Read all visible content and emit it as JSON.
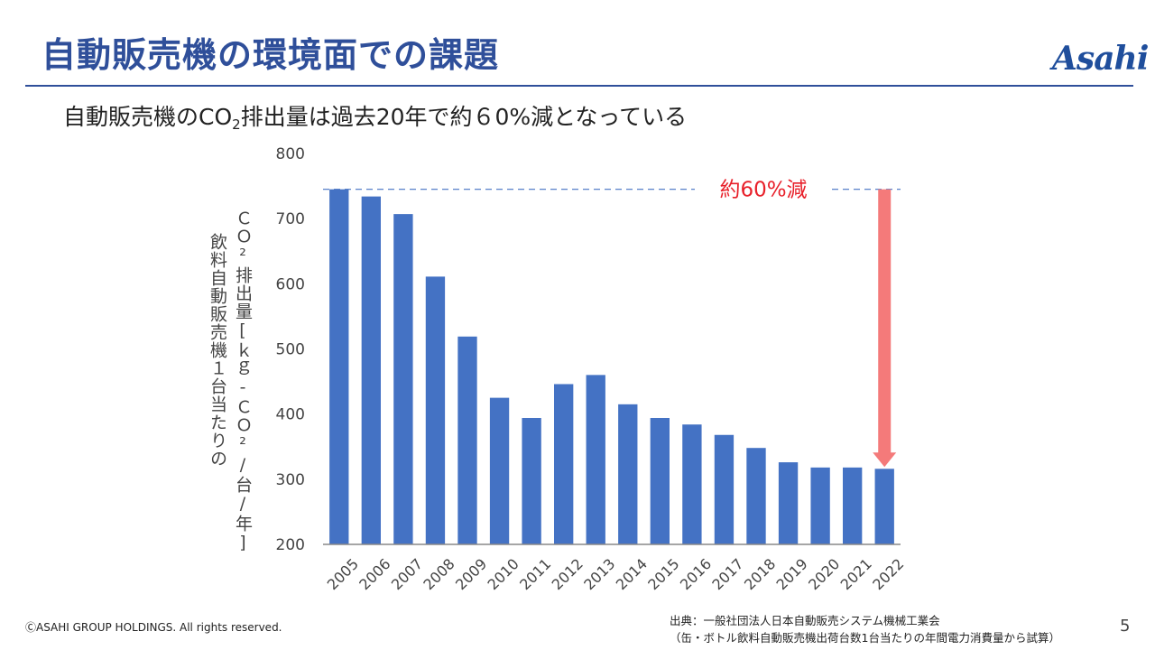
{
  "slide": {
    "title": "自動販売機の環境面での課題",
    "logo_text": "Asahi",
    "subtitle_prefix": "自動販売機のCO",
    "subtitle_sub": "2",
    "subtitle_suffix": "排出量は過去20年で約６0%減となっている",
    "ylabel_line1": "ＣＯ²排出量[ｋｇ-ＣＯ²/台/年]",
    "ylabel_line2": "飲料自動販売機１台当たりの",
    "copyright": "ⒸASAHI GROUP HOLDINGS. All rights reserved.",
    "source_line1": "出典：一般社団法人日本自動販売システム機械工業会",
    "source_line2": "（缶・ボトル飲料自動販売機出荷台数1台当たりの年間電力消費量から試算）",
    "page_number": "5",
    "colors": {
      "title": "#2f4f9a",
      "bar": "#4472c4",
      "arrow": "#f47a7a",
      "annotation": "#e8202a",
      "reference_line": "#4472c4"
    }
  },
  "chart_data": {
    "type": "bar",
    "categories": [
      "2005",
      "2006",
      "2007",
      "2008",
      "2009",
      "2010",
      "2011",
      "2012",
      "2013",
      "2014",
      "2015",
      "2016",
      "2017",
      "2018",
      "2019",
      "2020",
      "2021",
      "2022"
    ],
    "values": [
      745,
      734,
      707,
      611,
      519,
      425,
      394,
      446,
      460,
      415,
      394,
      384,
      368,
      348,
      326,
      318,
      318,
      316
    ],
    "ylim": [
      200,
      800
    ],
    "yticks": [
      "200",
      "300",
      "400",
      "500",
      "600",
      "700",
      "800"
    ],
    "grid": false,
    "reference_value": 745,
    "annotation": "約60%減"
  }
}
